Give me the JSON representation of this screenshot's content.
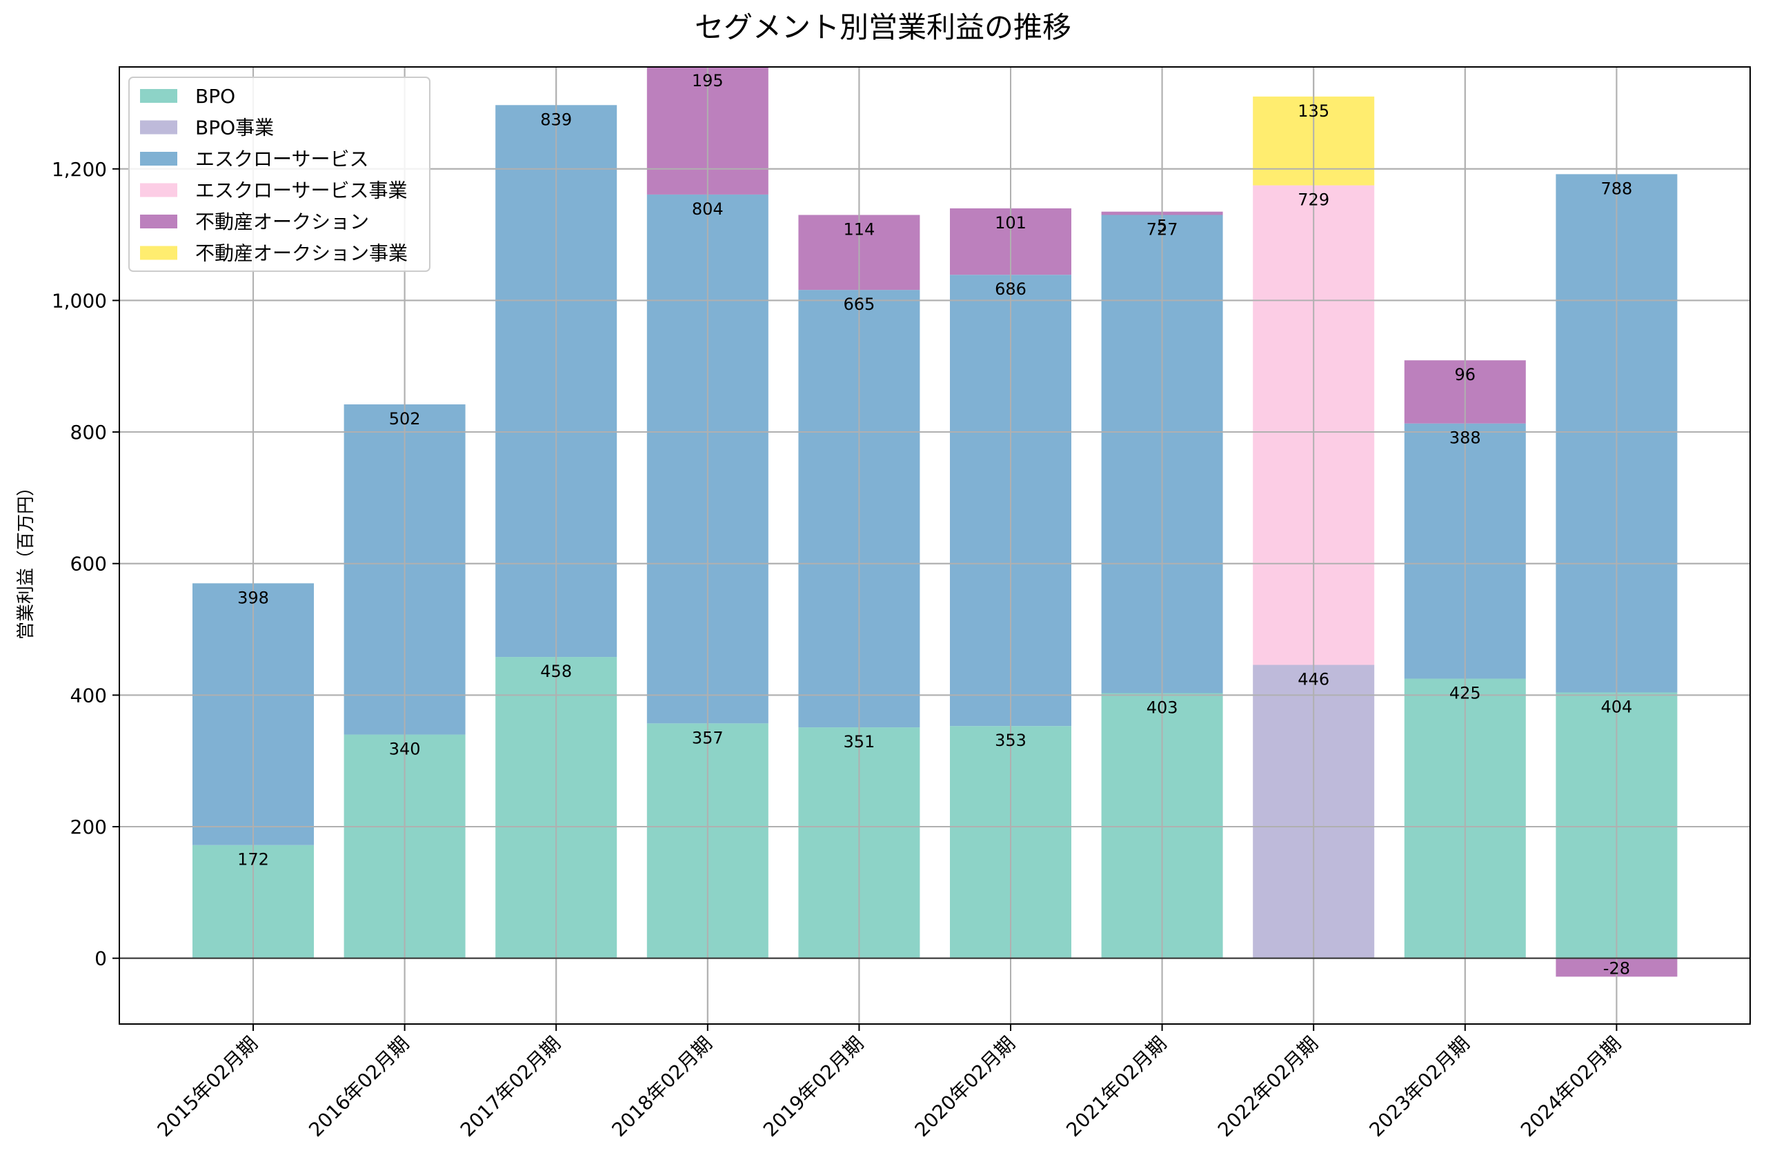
{
  "chart_data": {
    "type": "bar",
    "stacked": true,
    "title": "セグメント別営業利益の推移",
    "xlabel": "",
    "ylabel": "営業利益（百万円）",
    "ylim": [
      -100,
      1355
    ],
    "yticks": [
      0,
      200,
      400,
      600,
      800,
      1000,
      1200
    ],
    "ytick_labels": [
      "0",
      "200",
      "400",
      "600",
      "800",
      "1,000",
      "1,200"
    ],
    "grid": true,
    "legend_position": "top-left",
    "categories": [
      "2015年02月期",
      "2016年02月期",
      "2017年02月期",
      "2018年02月期",
      "2019年02月期",
      "2020年02月期",
      "2021年02月期",
      "2022年02月期",
      "2023年02月期",
      "2024年02月期"
    ],
    "series": [
      {
        "name": "BPO",
        "color": "#8dd3c7",
        "values": [
          172,
          340,
          458,
          357,
          351,
          353,
          403,
          null,
          425,
          404
        ]
      },
      {
        "name": "BPO事業",
        "color": "#bebada",
        "values": [
          null,
          null,
          null,
          null,
          null,
          null,
          null,
          446,
          null,
          null
        ]
      },
      {
        "name": "エスクローサービス",
        "color": "#80b1d3",
        "values": [
          398,
          502,
          839,
          804,
          665,
          686,
          727,
          null,
          388,
          788
        ]
      },
      {
        "name": "エスクローサービス事業",
        "color": "#fccde5",
        "values": [
          null,
          null,
          null,
          null,
          null,
          null,
          null,
          729,
          null,
          null
        ]
      },
      {
        "name": "不動産オークション",
        "color": "#bc80bd",
        "values": [
          null,
          null,
          null,
          195,
          114,
          101,
          5,
          null,
          96,
          -28
        ]
      },
      {
        "name": "不動産オークション事業",
        "color": "#ffed6f",
        "values": [
          null,
          null,
          null,
          null,
          null,
          null,
          null,
          135,
          null,
          null
        ]
      }
    ]
  }
}
